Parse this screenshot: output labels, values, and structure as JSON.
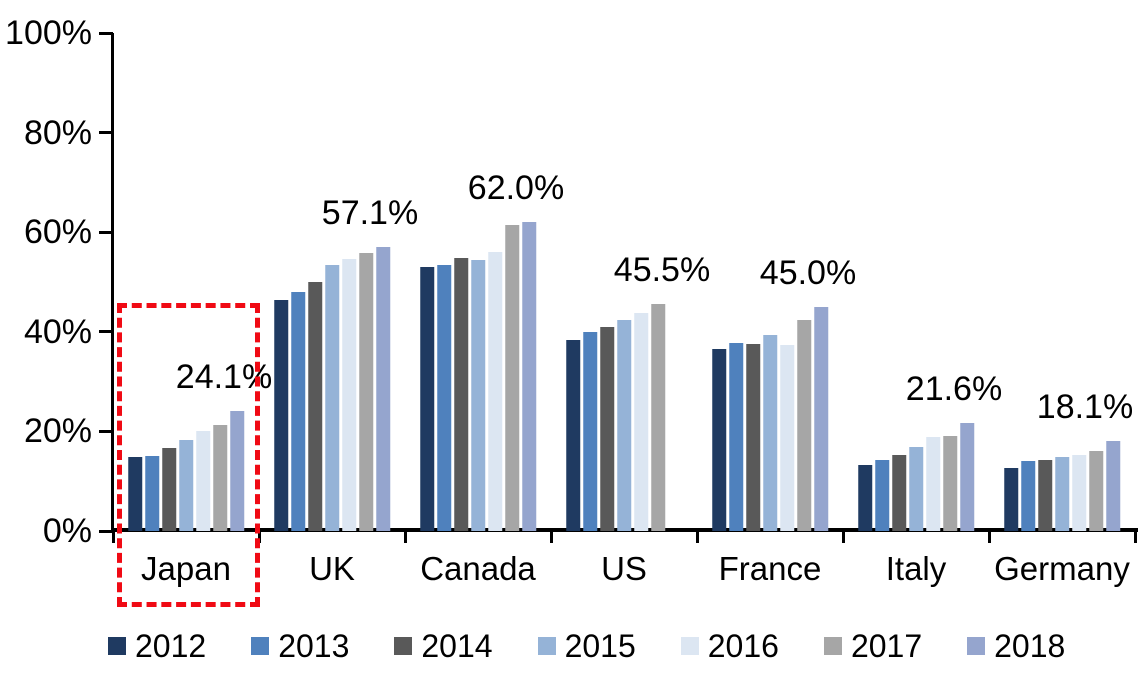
{
  "chart_data": {
    "type": "bar",
    "title": "",
    "xlabel": "",
    "ylabel": "",
    "ylim": [
      0,
      100
    ],
    "grid": false,
    "legend_position": "bottom",
    "yticks": [
      "0%",
      "20%",
      "40%",
      "60%",
      "80%",
      "100%"
    ],
    "categories": [
      "Japan",
      "UK",
      "Canada",
      "US",
      "France",
      "Italy",
      "Germany"
    ],
    "series": [
      {
        "name": "2012",
        "color": "#1f3a61",
        "values": [
          14.8,
          46.3,
          53.1,
          38.3,
          36.6,
          13.3,
          12.6
        ]
      },
      {
        "name": "2013",
        "color": "#4f81bd",
        "values": [
          15.0,
          48.0,
          53.5,
          40.0,
          37.7,
          14.2,
          14.1
        ]
      },
      {
        "name": "2014",
        "color": "#595959",
        "values": [
          16.7,
          50.0,
          54.9,
          41.0,
          37.5,
          15.3,
          14.3
        ]
      },
      {
        "name": "2015",
        "color": "#95b3d7",
        "values": [
          18.3,
          53.4,
          54.5,
          42.3,
          39.3,
          16.9,
          14.8
        ]
      },
      {
        "name": "2016",
        "color": "#dce6f2",
        "values": [
          20.1,
          54.6,
          56.1,
          43.8,
          37.3,
          18.9,
          15.3
        ]
      },
      {
        "name": "2017",
        "color": "#a6a6a6",
        "values": [
          21.2,
          55.8,
          61.5,
          45.5,
          42.4,
          19.1,
          16.1
        ]
      },
      {
        "name": "2018",
        "color": "#95a5ce",
        "values": [
          24.1,
          57.1,
          62.0,
          null,
          45.0,
          21.6,
          18.1
        ]
      }
    ],
    "annotations": [
      {
        "category": "Japan",
        "label": "24.1%"
      },
      {
        "category": "UK",
        "label": "57.1%"
      },
      {
        "category": "Canada",
        "label": "62.0%"
      },
      {
        "category": "US",
        "label": "45.5%"
      },
      {
        "category": "France",
        "label": "45.0%"
      },
      {
        "category": "Italy",
        "label": "21.6%"
      },
      {
        "category": "Germany",
        "label": "18.1%"
      }
    ],
    "highlight": {
      "category": "Japan",
      "shape": "dashed-rectangle",
      "color": "#f00a14"
    }
  }
}
